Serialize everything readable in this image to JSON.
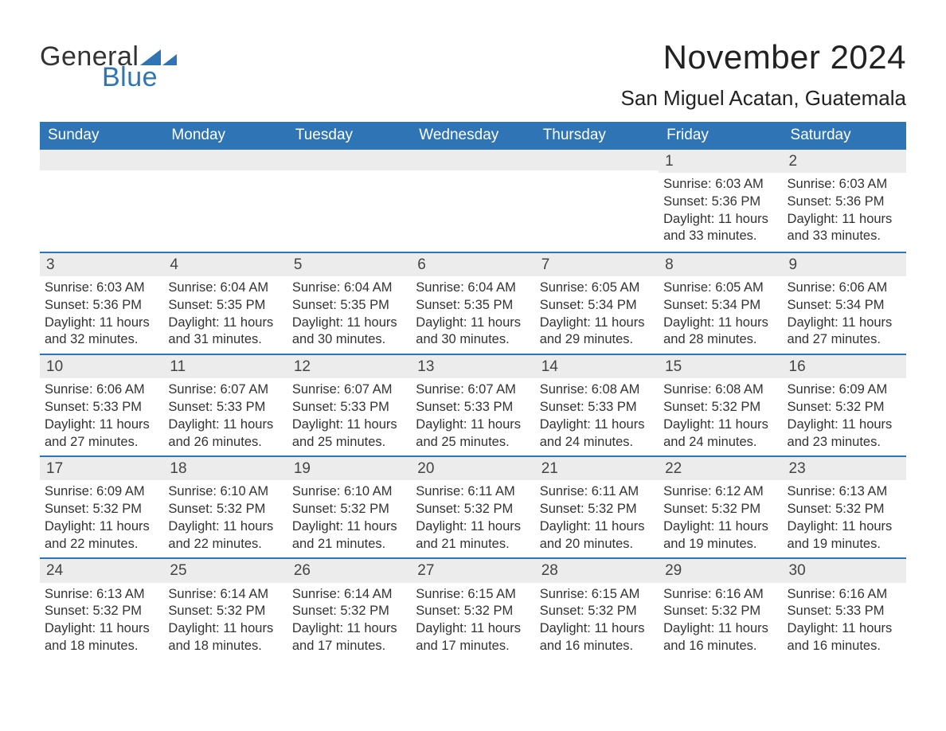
{
  "brand": {
    "word1": "General",
    "word2": "Blue",
    "accent_color": "#2f74b5",
    "text_color": "#333333"
  },
  "title": "November 2024",
  "location": "San Miguel Acatan, Guatemala",
  "colors": {
    "header_bg": "#2f74b5",
    "header_text": "#ffffff",
    "daynum_bg": "#ececec",
    "week_border": "#2f74b5",
    "body_text": "#333333",
    "page_bg": "#ffffff"
  },
  "days_of_week": [
    "Sunday",
    "Monday",
    "Tuesday",
    "Wednesday",
    "Thursday",
    "Friday",
    "Saturday"
  ],
  "weeks": [
    [
      {
        "empty": true
      },
      {
        "empty": true
      },
      {
        "empty": true
      },
      {
        "empty": true
      },
      {
        "empty": true
      },
      {
        "num": "1",
        "sunrise": "Sunrise: 6:03 AM",
        "sunset": "Sunset: 5:36 PM",
        "daylight": "Daylight: 11 hours and 33 minutes."
      },
      {
        "num": "2",
        "sunrise": "Sunrise: 6:03 AM",
        "sunset": "Sunset: 5:36 PM",
        "daylight": "Daylight: 11 hours and 33 minutes."
      }
    ],
    [
      {
        "num": "3",
        "sunrise": "Sunrise: 6:03 AM",
        "sunset": "Sunset: 5:36 PM",
        "daylight": "Daylight: 11 hours and 32 minutes."
      },
      {
        "num": "4",
        "sunrise": "Sunrise: 6:04 AM",
        "sunset": "Sunset: 5:35 PM",
        "daylight": "Daylight: 11 hours and 31 minutes."
      },
      {
        "num": "5",
        "sunrise": "Sunrise: 6:04 AM",
        "sunset": "Sunset: 5:35 PM",
        "daylight": "Daylight: 11 hours and 30 minutes."
      },
      {
        "num": "6",
        "sunrise": "Sunrise: 6:04 AM",
        "sunset": "Sunset: 5:35 PM",
        "daylight": "Daylight: 11 hours and 30 minutes."
      },
      {
        "num": "7",
        "sunrise": "Sunrise: 6:05 AM",
        "sunset": "Sunset: 5:34 PM",
        "daylight": "Daylight: 11 hours and 29 minutes."
      },
      {
        "num": "8",
        "sunrise": "Sunrise: 6:05 AM",
        "sunset": "Sunset: 5:34 PM",
        "daylight": "Daylight: 11 hours and 28 minutes."
      },
      {
        "num": "9",
        "sunrise": "Sunrise: 6:06 AM",
        "sunset": "Sunset: 5:34 PM",
        "daylight": "Daylight: 11 hours and 27 minutes."
      }
    ],
    [
      {
        "num": "10",
        "sunrise": "Sunrise: 6:06 AM",
        "sunset": "Sunset: 5:33 PM",
        "daylight": "Daylight: 11 hours and 27 minutes."
      },
      {
        "num": "11",
        "sunrise": "Sunrise: 6:07 AM",
        "sunset": "Sunset: 5:33 PM",
        "daylight": "Daylight: 11 hours and 26 minutes."
      },
      {
        "num": "12",
        "sunrise": "Sunrise: 6:07 AM",
        "sunset": "Sunset: 5:33 PM",
        "daylight": "Daylight: 11 hours and 25 minutes."
      },
      {
        "num": "13",
        "sunrise": "Sunrise: 6:07 AM",
        "sunset": "Sunset: 5:33 PM",
        "daylight": "Daylight: 11 hours and 25 minutes."
      },
      {
        "num": "14",
        "sunrise": "Sunrise: 6:08 AM",
        "sunset": "Sunset: 5:33 PM",
        "daylight": "Daylight: 11 hours and 24 minutes."
      },
      {
        "num": "15",
        "sunrise": "Sunrise: 6:08 AM",
        "sunset": "Sunset: 5:32 PM",
        "daylight": "Daylight: 11 hours and 24 minutes."
      },
      {
        "num": "16",
        "sunrise": "Sunrise: 6:09 AM",
        "sunset": "Sunset: 5:32 PM",
        "daylight": "Daylight: 11 hours and 23 minutes."
      }
    ],
    [
      {
        "num": "17",
        "sunrise": "Sunrise: 6:09 AM",
        "sunset": "Sunset: 5:32 PM",
        "daylight": "Daylight: 11 hours and 22 minutes."
      },
      {
        "num": "18",
        "sunrise": "Sunrise: 6:10 AM",
        "sunset": "Sunset: 5:32 PM",
        "daylight": "Daylight: 11 hours and 22 minutes."
      },
      {
        "num": "19",
        "sunrise": "Sunrise: 6:10 AM",
        "sunset": "Sunset: 5:32 PM",
        "daylight": "Daylight: 11 hours and 21 minutes."
      },
      {
        "num": "20",
        "sunrise": "Sunrise: 6:11 AM",
        "sunset": "Sunset: 5:32 PM",
        "daylight": "Daylight: 11 hours and 21 minutes."
      },
      {
        "num": "21",
        "sunrise": "Sunrise: 6:11 AM",
        "sunset": "Sunset: 5:32 PM",
        "daylight": "Daylight: 11 hours and 20 minutes."
      },
      {
        "num": "22",
        "sunrise": "Sunrise: 6:12 AM",
        "sunset": "Sunset: 5:32 PM",
        "daylight": "Daylight: 11 hours and 19 minutes."
      },
      {
        "num": "23",
        "sunrise": "Sunrise: 6:13 AM",
        "sunset": "Sunset: 5:32 PM",
        "daylight": "Daylight: 11 hours and 19 minutes."
      }
    ],
    [
      {
        "num": "24",
        "sunrise": "Sunrise: 6:13 AM",
        "sunset": "Sunset: 5:32 PM",
        "daylight": "Daylight: 11 hours and 18 minutes."
      },
      {
        "num": "25",
        "sunrise": "Sunrise: 6:14 AM",
        "sunset": "Sunset: 5:32 PM",
        "daylight": "Daylight: 11 hours and 18 minutes."
      },
      {
        "num": "26",
        "sunrise": "Sunrise: 6:14 AM",
        "sunset": "Sunset: 5:32 PM",
        "daylight": "Daylight: 11 hours and 17 minutes."
      },
      {
        "num": "27",
        "sunrise": "Sunrise: 6:15 AM",
        "sunset": "Sunset: 5:32 PM",
        "daylight": "Daylight: 11 hours and 17 minutes."
      },
      {
        "num": "28",
        "sunrise": "Sunrise: 6:15 AM",
        "sunset": "Sunset: 5:32 PM",
        "daylight": "Daylight: 11 hours and 16 minutes."
      },
      {
        "num": "29",
        "sunrise": "Sunrise: 6:16 AM",
        "sunset": "Sunset: 5:32 PM",
        "daylight": "Daylight: 11 hours and 16 minutes."
      },
      {
        "num": "30",
        "sunrise": "Sunrise: 6:16 AM",
        "sunset": "Sunset: 5:33 PM",
        "daylight": "Daylight: 11 hours and 16 minutes."
      }
    ]
  ]
}
